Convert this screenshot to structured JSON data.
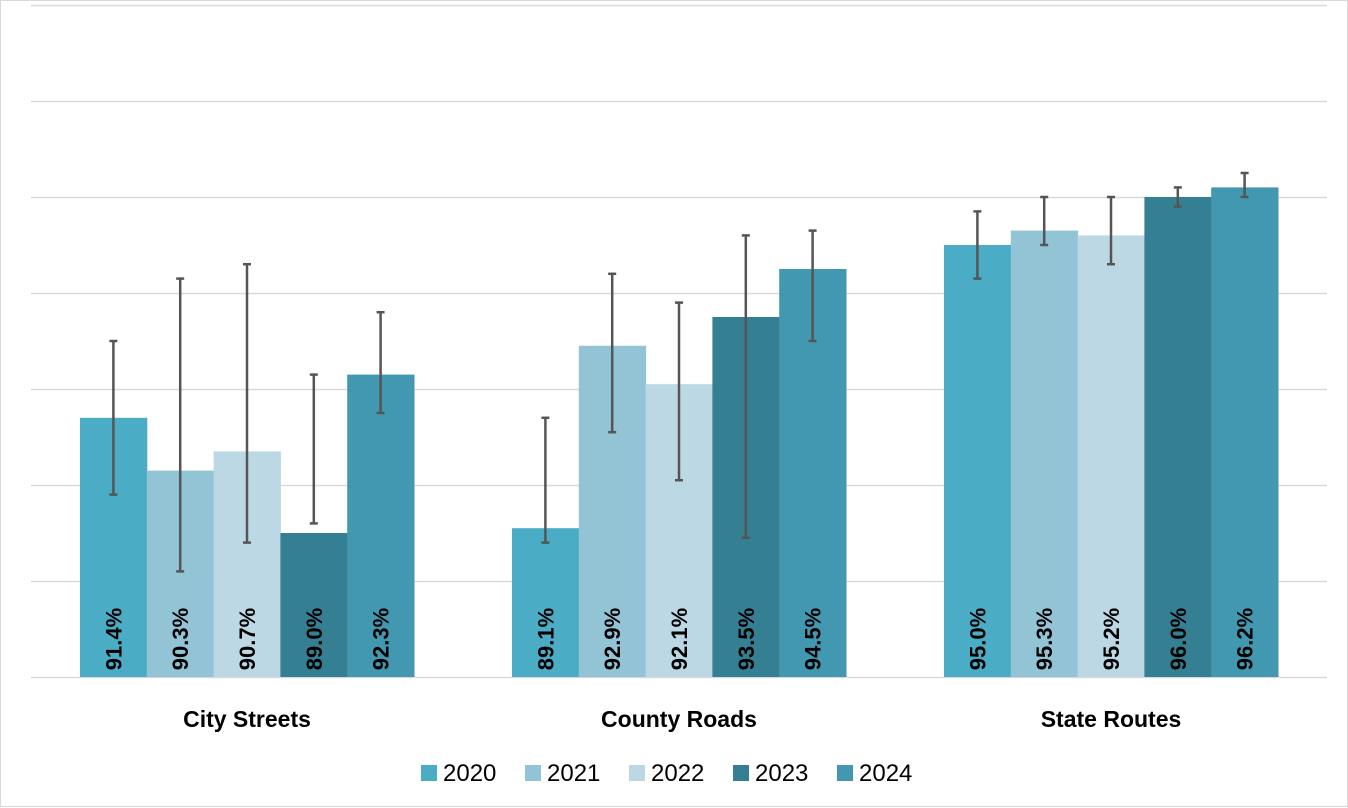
{
  "chart_data": {
    "type": "bar",
    "title": "",
    "xlabel": "",
    "ylabel": "",
    "ylim": [
      86,
      100
    ],
    "grid": true,
    "legend_position": "bottom",
    "categories": [
      "City Streets",
      "County Roads",
      "State Routes"
    ],
    "series": [
      {
        "name": "2020",
        "color": "#4BACC6",
        "values": [
          91.4,
          89.1,
          95.0
        ],
        "labels": [
          "91.4%",
          "89.1%",
          "95.0%"
        ],
        "err_low": [
          89.8,
          88.8,
          94.3
        ],
        "err_high": [
          93.0,
          91.4,
          95.7
        ]
      },
      {
        "name": "2021",
        "color": "#92C4D5",
        "values": [
          90.3,
          92.9,
          95.3
        ],
        "labels": [
          "90.3%",
          "92.9%",
          "95.3%"
        ],
        "err_low": [
          88.2,
          91.1,
          95.0
        ],
        "err_high": [
          94.3,
          94.4,
          96.0
        ]
      },
      {
        "name": "2022",
        "color": "#BCD8E4",
        "values": [
          90.7,
          92.1,
          95.2
        ],
        "labels": [
          "90.7%",
          "92.1%",
          "95.2%"
        ],
        "err_low": [
          88.8,
          90.1,
          94.6
        ],
        "err_high": [
          94.6,
          93.8,
          96.0
        ]
      },
      {
        "name": "2023",
        "color": "#357F93",
        "values": [
          89.0,
          93.5,
          96.0
        ],
        "labels": [
          "89.0%",
          "93.5%",
          "96.0%"
        ],
        "err_low": [
          89.2,
          88.9,
          95.8
        ],
        "err_high": [
          92.3,
          95.2,
          96.2
        ]
      },
      {
        "name": "2024",
        "color": "#4298B0",
        "values": [
          92.3,
          94.5,
          96.2
        ],
        "labels": [
          "92.3%",
          "94.5%",
          "96.2%"
        ],
        "err_low": [
          91.5,
          93.0,
          96.0
        ],
        "err_high": [
          93.6,
          95.3,
          96.5
        ]
      }
    ]
  }
}
